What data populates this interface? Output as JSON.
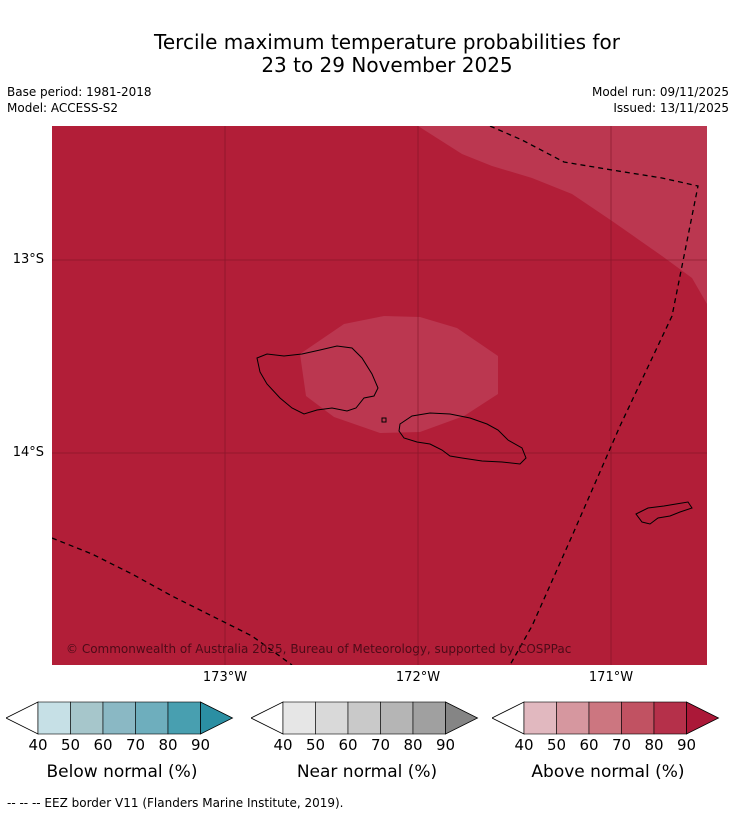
{
  "title_line1": "Tercile maximum temperature probabilities for",
  "title_line2": "23 to 29 November 2025",
  "base_period": "Base period: 1981-2018",
  "model": "Model: ACCESS-S2",
  "model_run": "Model run: 09/11/2025",
  "issued": "Issued: 13/11/2025",
  "lat_labels": [
    "13°S",
    "14°S"
  ],
  "lon_labels": [
    "173°W",
    "172°W",
    "171°W"
  ],
  "copyright": "© Commonwealth of Australia 2025, Bureau of Meteorology, supported by COSPPac",
  "colorbars": [
    {
      "caption": "Below normal (%)",
      "ticks": [
        "40",
        "50",
        "60",
        "70",
        "80",
        "90"
      ],
      "colors": [
        "#ffffff",
        "#c6e0e6",
        "#a6c6cb",
        "#8ab8c4",
        "#6eaebd",
        "#489fb0",
        "#2b8fa3"
      ]
    },
    {
      "caption": "Near normal (%)",
      "ticks": [
        "40",
        "50",
        "60",
        "70",
        "80",
        "90"
      ],
      "colors": [
        "#ffffff",
        "#e6e6e6",
        "#d9d9d9",
        "#c9c9c9",
        "#b5b5b5",
        "#a0a0a0",
        "#858585"
      ]
    },
    {
      "caption": "Above normal (%)",
      "ticks": [
        "40",
        "50",
        "60",
        "70",
        "80",
        "90"
      ],
      "colors": [
        "#ffffff",
        "#e1b8bf",
        "#d6979f",
        "#cc7680",
        "#c15262",
        "#b5304a",
        "#ab1838"
      ]
    }
  ],
  "footer": "--  --  -- EEZ border V11 (Flanders Marine Institute, 2019).",
  "map_colors": {
    "dominant": "#b21e38",
    "lighter": "#bb3750",
    "grid": "#7a1424"
  }
}
